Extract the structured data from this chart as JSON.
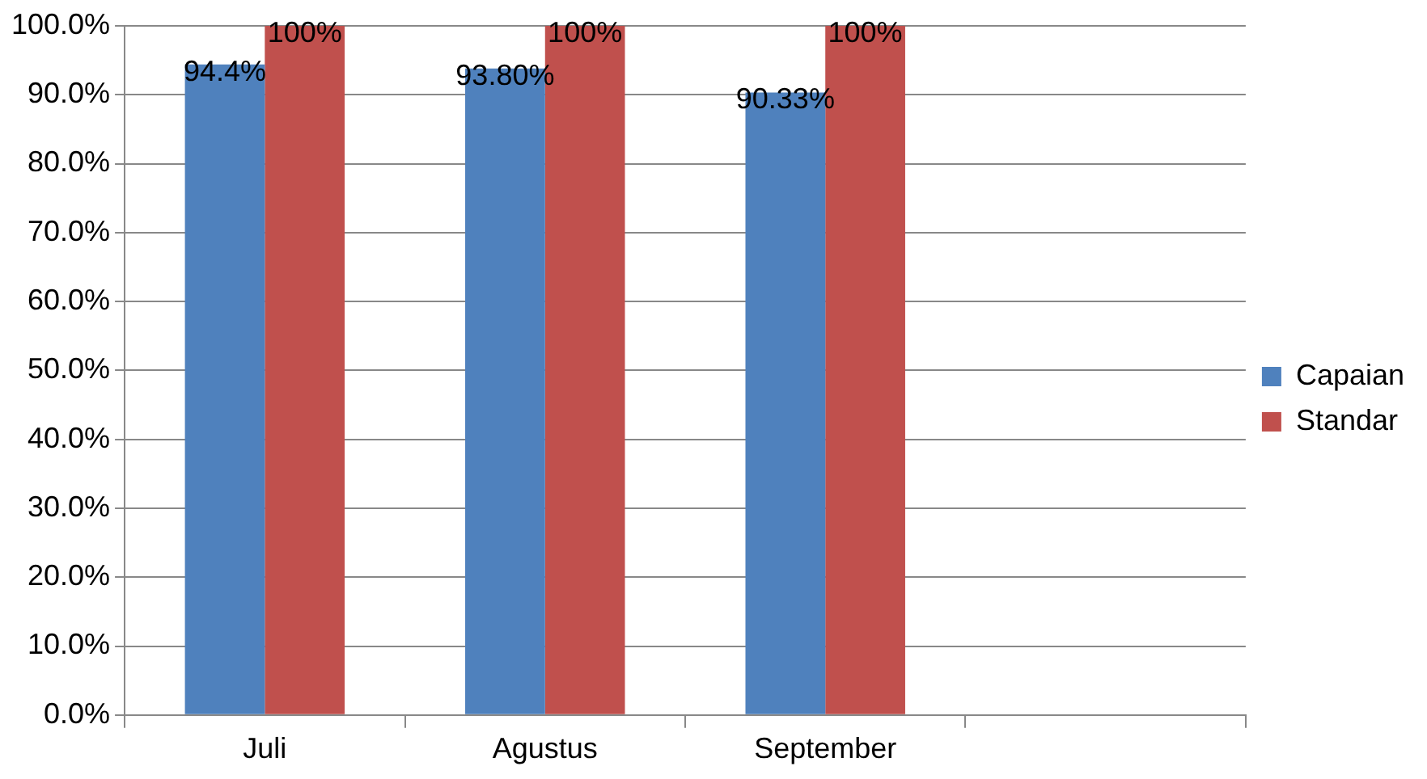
{
  "chart_data": {
    "type": "bar",
    "categories": [
      "Juli",
      "Agustus",
      "September",
      null
    ],
    "series": [
      {
        "name": "Capaian",
        "color": "#4f81bd",
        "values": [
          94.4,
          93.8,
          90.33,
          null
        ],
        "value_labels": [
          "94.4%",
          "93.80%",
          "90.33%",
          null
        ]
      },
      {
        "name": "Standar",
        "color": "#c0504d",
        "values": [
          100,
          100,
          100,
          null
        ],
        "value_labels": [
          "100%",
          "100%",
          "100%",
          null
        ]
      }
    ],
    "ylim": [
      0,
      100
    ],
    "yticks": [
      {
        "value": 0,
        "label": "0.0%"
      },
      {
        "value": 10,
        "label": "10.0%"
      },
      {
        "value": 20,
        "label": "20.0%"
      },
      {
        "value": 30,
        "label": "30.0%"
      },
      {
        "value": 40,
        "label": "40.0%"
      },
      {
        "value": 50,
        "label": "50.0%"
      },
      {
        "value": 60,
        "label": "60.0%"
      },
      {
        "value": 70,
        "label": "70.0%"
      },
      {
        "value": 80,
        "label": "80.0%"
      },
      {
        "value": 90,
        "label": "90.0%"
      },
      {
        "value": 100,
        "label": "100.0%"
      }
    ],
    "grid": "y",
    "legend": "right"
  }
}
